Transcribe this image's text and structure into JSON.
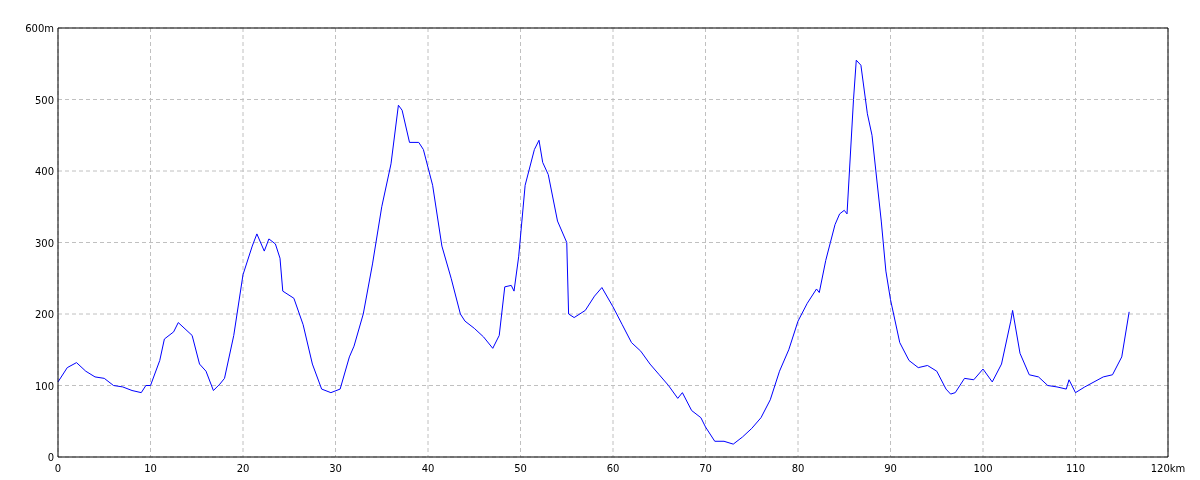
{
  "chart_data": {
    "type": "line",
    "xlim": [
      0,
      120
    ],
    "ylim": [
      0,
      600
    ],
    "xticks": [
      0,
      10,
      20,
      30,
      40,
      50,
      60,
      70,
      80,
      90,
      100,
      110,
      {
        "value": 120,
        "label": "120km"
      }
    ],
    "yticks": [
      0,
      100,
      200,
      300,
      400,
      500,
      {
        "value": 600,
        "label": "600m"
      }
    ],
    "grid": true,
    "series": [
      {
        "color": "#0000ff",
        "x": [
          0,
          1,
          2,
          3,
          4,
          5,
          6,
          7,
          8,
          9,
          9.5,
          10,
          11,
          11.5,
          12.5,
          13,
          14.5,
          15.3,
          16,
          16.8,
          17.5,
          18,
          19,
          20,
          21,
          21.5,
          22.3,
          22.8,
          23.5,
          24,
          24.3,
          25.5,
          26.5,
          27.5,
          28.5,
          29.5,
          30.5,
          31.5,
          32,
          33,
          34,
          35,
          36,
          36.8,
          37.2,
          38,
          39,
          39.5,
          40.5,
          41.5,
          42.5,
          43.5,
          44,
          45,
          46,
          47,
          47.7,
          48.3,
          49,
          49.3,
          49.8,
          50.5,
          51.5,
          52,
          52.4,
          53,
          54,
          55,
          55.2,
          55.8,
          57,
          58,
          58.8,
          60,
          61,
          62,
          63,
          64,
          65,
          66,
          67,
          67.5,
          68.5,
          69.5,
          70,
          71,
          72,
          73,
          74,
          75,
          76,
          77,
          78,
          79,
          80,
          81,
          82,
          82.3,
          83,
          83.5,
          84,
          84.5,
          85,
          85.3,
          86,
          86.3,
          86.8,
          87.5,
          88,
          89,
          89.5,
          90,
          91,
          92,
          93,
          94,
          95,
          96,
          96.5,
          97,
          98,
          99,
          100,
          101,
          102,
          103,
          103.2,
          104,
          105,
          106,
          107,
          108,
          109,
          109.3,
          110,
          111,
          112,
          113,
          114,
          115,
          115.8
        ],
        "values": [
          105,
          125,
          132,
          120,
          112,
          110,
          100,
          98,
          93,
          90,
          100,
          100,
          135,
          165,
          175,
          188,
          170,
          130,
          120,
          93,
          102,
          110,
          170,
          255,
          295,
          312,
          288,
          305,
          298,
          278,
          232,
          222,
          185,
          130,
          95,
          90,
          95,
          140,
          155,
          200,
          270,
          350,
          410,
          492,
          485,
          440,
          440,
          430,
          380,
          295,
          250,
          200,
          190,
          180,
          168,
          152,
          170,
          238,
          240,
          232,
          280,
          380,
          430,
          443,
          412,
          395,
          330,
          300,
          200,
          195,
          205,
          225,
          237,
          210,
          185,
          160,
          148,
          130,
          115,
          100,
          82,
          90,
          65,
          55,
          42,
          22,
          22,
          18,
          28,
          40,
          55,
          80,
          120,
          150,
          190,
          215,
          235,
          230,
          275,
          300,
          325,
          340,
          345,
          340,
          500,
          555,
          548,
          480,
          450,
          330,
          260,
          220,
          160,
          135,
          125,
          128,
          120,
          95,
          88,
          90,
          110,
          108,
          123,
          105,
          130,
          190,
          205,
          145,
          115,
          112,
          100,
          98,
          95,
          108,
          90,
          98,
          105,
          112,
          115,
          140,
          203
        ]
      }
    ]
  }
}
